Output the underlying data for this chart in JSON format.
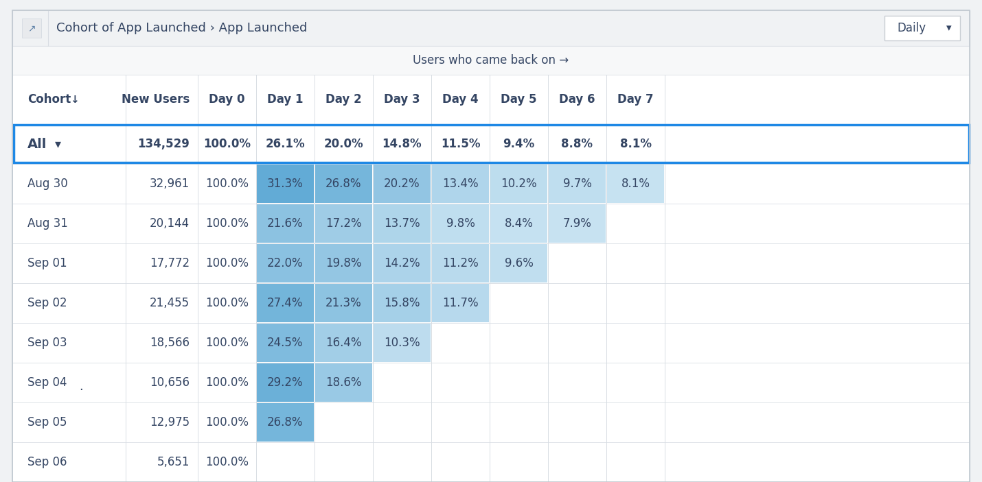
{
  "title": "Cohort of App Launched › App Launched",
  "subtitle": "Users who came back on →",
  "daily_label": "Daily",
  "columns": [
    "Cohort",
    "New Users",
    "Day 0",
    "Day 1",
    "Day 2",
    "Day 3",
    "Day 4",
    "Day 5",
    "Day 6",
    "Day 7",
    ""
  ],
  "rows": [
    {
      "cohort": "All",
      "new_users": "134,529",
      "values": [
        "100.0%",
        "26.1%",
        "20.0%",
        "14.8%",
        "11.5%",
        "9.4%",
        "8.8%",
        "8.1%"
      ],
      "is_all": true
    },
    {
      "cohort": "Aug 30",
      "new_users": "32,961",
      "values": [
        "100.0%",
        "31.3%",
        "26.8%",
        "20.2%",
        "13.4%",
        "10.2%",
        "9.7%",
        "8.1%"
      ],
      "is_all": false
    },
    {
      "cohort": "Aug 31",
      "new_users": "20,144",
      "values": [
        "100.0%",
        "21.6%",
        "17.2%",
        "13.7%",
        "9.8%",
        "8.4%",
        "7.9%",
        ""
      ],
      "is_all": false
    },
    {
      "cohort": "Sep 01",
      "new_users": "17,772",
      "values": [
        "100.0%",
        "22.0%",
        "19.8%",
        "14.2%",
        "11.2%",
        "9.6%",
        "",
        ""
      ],
      "is_all": false
    },
    {
      "cohort": "Sep 02",
      "new_users": "21,455",
      "values": [
        "100.0%",
        "27.4%",
        "21.3%",
        "15.8%",
        "11.7%",
        "",
        "",
        ""
      ],
      "is_all": false
    },
    {
      "cohort": "Sep 03",
      "new_users": "18,566",
      "values": [
        "100.0%",
        "24.5%",
        "16.4%",
        "10.3%",
        "",
        "",
        "",
        ""
      ],
      "is_all": false
    },
    {
      "cohort": "Sep 04",
      "new_users": "10,656",
      "values": [
        "100.0%",
        "29.2%",
        "18.6%",
        "",
        "",
        "",
        "",
        ""
      ],
      "is_all": false,
      "dot": true
    },
    {
      "cohort": "Sep 05",
      "new_users": "12,975",
      "values": [
        "100.0%",
        "26.8%",
        "",
        "",
        "",
        "",
        "",
        ""
      ],
      "is_all": false
    },
    {
      "cohort": "Sep 06",
      "new_users": "5,651",
      "values": [
        "100.0%",
        "",
        "",
        "",
        "",
        "",
        "",
        ""
      ],
      "is_all": false
    }
  ],
  "outer_bg": "#f0f2f4",
  "table_bg": "#ffffff",
  "header_bar_bg": "#f0f2f4",
  "sub_header_bg": "#f7f8f9",
  "col_header_bg": "#ffffff",
  "border_color": "#d8dde3",
  "text_color": "#344563",
  "header_text_color": "#344563",
  "all_border_color": "#1e88e5",
  "daily_btn_border": "#c8cdd3",
  "icon_bg": "#e8eaed"
}
